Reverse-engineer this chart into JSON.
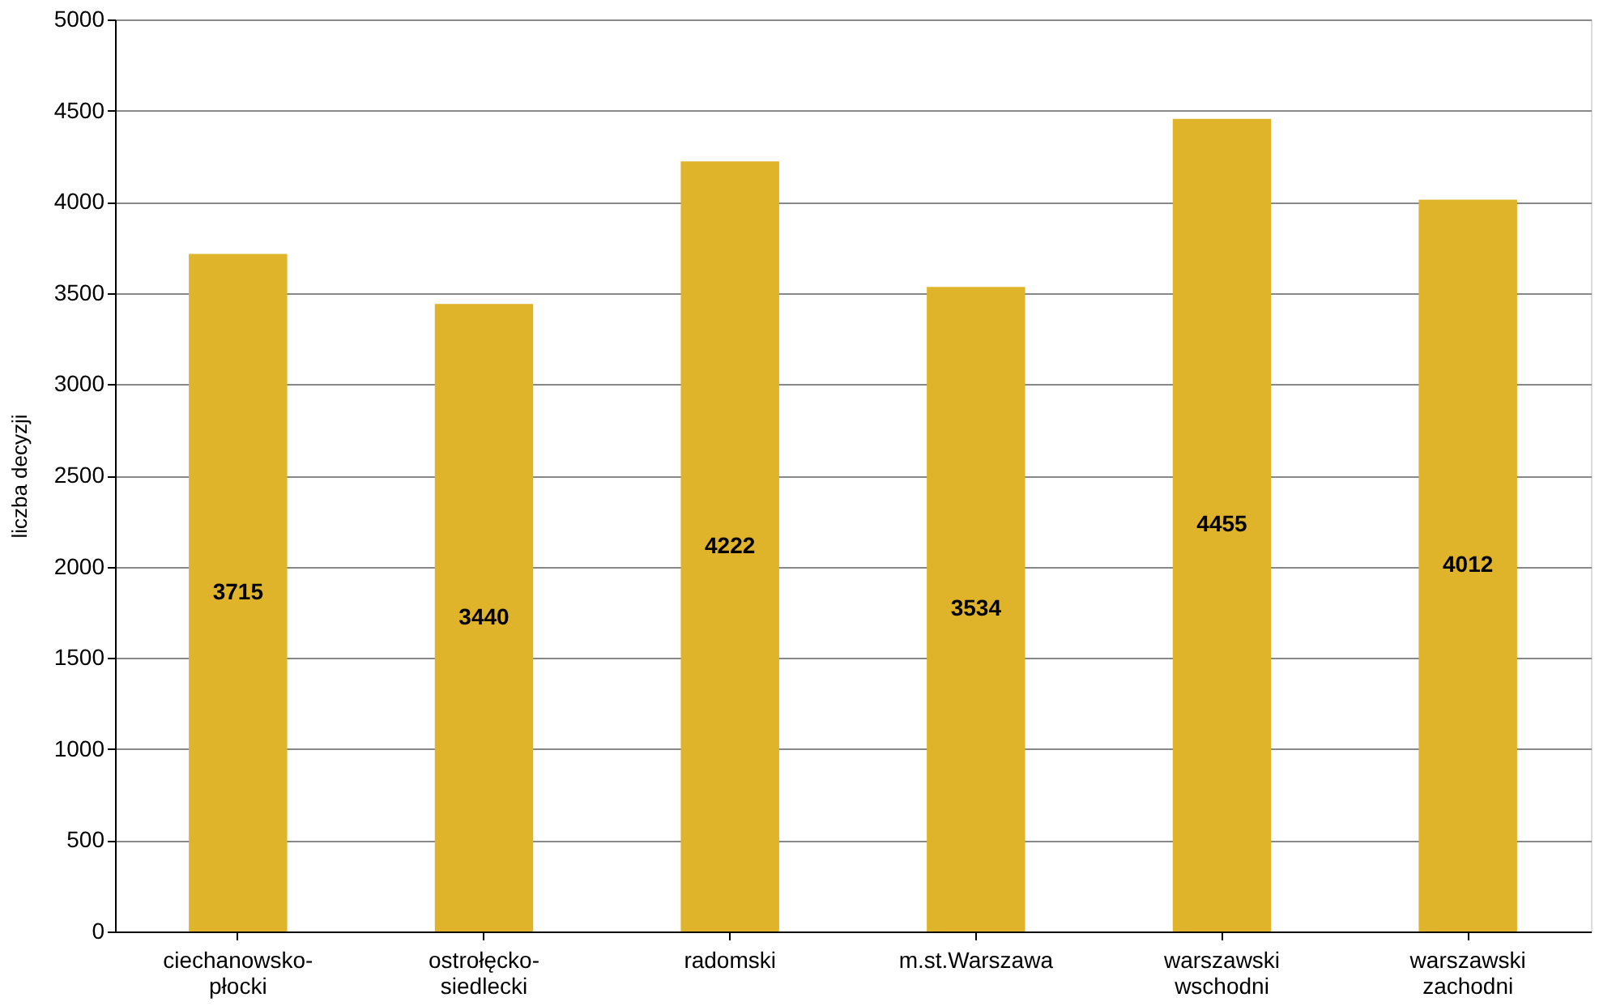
{
  "chart_data": {
    "type": "bar",
    "ylabel": "liczba decyzji",
    "categories": [
      "ciechanowsko-płocki",
      "ostrołęcko-siedlecki",
      "radomski",
      "m.st.Warszawa",
      "warszawski wschodni",
      "warszawski zachodni"
    ],
    "values": [
      3715,
      3440,
      4222,
      3534,
      4455,
      4012
    ],
    "color": "#e0b42a",
    "ylim": [
      0,
      5000
    ],
    "yticks": [
      0,
      500,
      1000,
      1500,
      2000,
      2500,
      3000,
      3500,
      4000,
      4500,
      5000
    ],
    "grid": "y",
    "data_labels": true
  }
}
